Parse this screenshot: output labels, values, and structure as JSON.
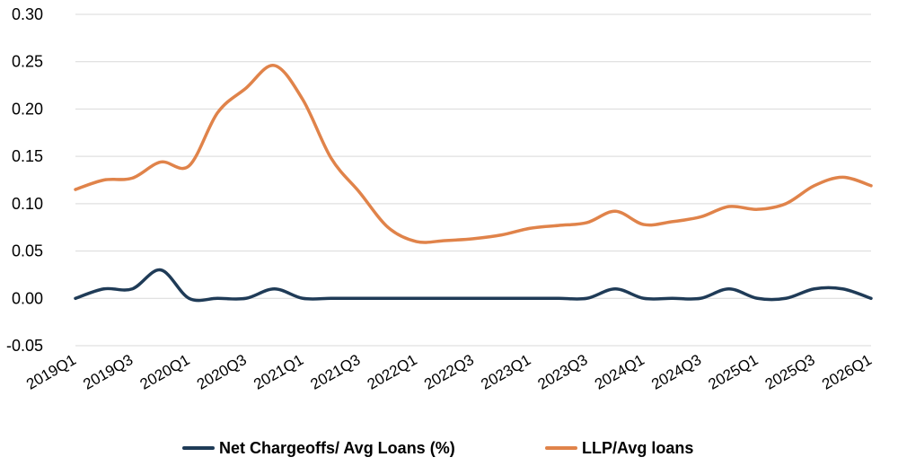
{
  "chart_data": {
    "type": "line",
    "title": "",
    "xlabel": "",
    "ylabel": "",
    "ylim": [
      -0.05,
      0.3
    ],
    "yticks": [
      "0.30",
      "0.25",
      "0.20",
      "0.15",
      "0.10",
      "0.05",
      "0.00",
      "-0.05"
    ],
    "ytick_values": [
      0.3,
      0.25,
      0.2,
      0.15,
      0.1,
      0.05,
      0.0,
      -0.05
    ],
    "x": [
      "2019Q1",
      "2019Q2",
      "2019Q3",
      "2019Q4",
      "2020Q1",
      "2020Q2",
      "2020Q3",
      "2020Q4",
      "2021Q1",
      "2021Q2",
      "2021Q3",
      "2021Q4",
      "2022Q1",
      "2022Q2",
      "2022Q3",
      "2022Q4",
      "2023Q1",
      "2023Q2",
      "2023Q3",
      "2023Q4",
      "2024Q1",
      "2024Q2",
      "2024Q3",
      "2024Q4",
      "2025Q1",
      "2025Q2",
      "2025Q3",
      "2025Q4",
      "2026Q1"
    ],
    "xtick_labels": [
      "2019Q1",
      "2019Q3",
      "2020Q1",
      "2020Q3",
      "2021Q1",
      "2021Q3",
      "2022Q1",
      "2022Q3",
      "2023Q1",
      "2023Q3",
      "2024Q1",
      "2024Q3",
      "2025Q1",
      "2025Q3",
      "2026Q1"
    ],
    "grid": true,
    "legend_position": "bottom",
    "series": [
      {
        "name": "Net Chargeoffs/ Avg Loans (%)",
        "color": "#1f3b57",
        "values": [
          0.0,
          0.01,
          0.01,
          0.03,
          0.0,
          0.0,
          0.0,
          0.01,
          0.0,
          0.0,
          0.0,
          0.0,
          0.0,
          0.0,
          0.0,
          0.0,
          0.0,
          0.0,
          0.0,
          0.01,
          0.0,
          0.0,
          0.0,
          0.01,
          0.0,
          0.0,
          0.01,
          0.01,
          0.0
        ]
      },
      {
        "name": "LLP/Avg loans",
        "color": "#e0834a",
        "values": [
          0.115,
          0.125,
          0.127,
          0.144,
          0.14,
          0.196,
          0.222,
          0.246,
          0.21,
          0.148,
          0.112,
          0.075,
          0.06,
          0.061,
          0.063,
          0.067,
          0.074,
          0.077,
          0.08,
          0.092,
          0.078,
          0.081,
          0.086,
          0.097,
          0.094,
          0.1,
          0.119,
          0.128,
          0.119
        ]
      }
    ]
  }
}
